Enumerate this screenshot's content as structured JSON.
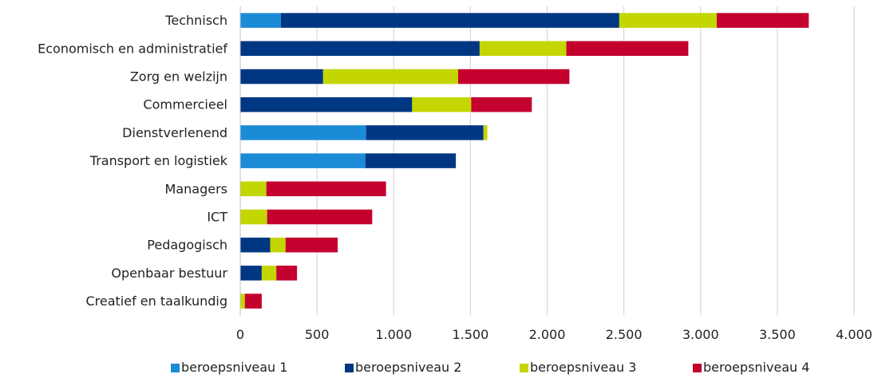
{
  "chart_data": {
    "type": "bar",
    "orientation": "horizontal",
    "stacked": true,
    "title": "",
    "xlabel": "",
    "ylabel": "",
    "xlim": [
      0,
      4000
    ],
    "x_ticks": [
      0,
      500,
      1000,
      1500,
      2000,
      2500,
      3000,
      3500,
      4000
    ],
    "x_tick_labels": [
      "0",
      "500",
      "1.000",
      "1.500",
      "2.000",
      "2.500",
      "3.000",
      "3.500",
      "4.000"
    ],
    "grid": "vertical",
    "legend_position": "bottom",
    "categories": [
      "Technisch",
      "Economisch en administratief",
      "Zorg en welzijn",
      "Commercieel",
      "Dienstverlenend",
      "Transport en logistiek",
      "Managers",
      "ICT",
      "Pedagogisch",
      "Openbaar bestuur",
      "Creatief en taalkundig"
    ],
    "series": [
      {
        "name": "beroepsniveau 1",
        "color": "#1B8BD8",
        "values": [
          265,
          0,
          0,
          0,
          820,
          815,
          0,
          0,
          0,
          0,
          0
        ]
      },
      {
        "name": "beroepsniveau 2",
        "color": "#003782",
        "values": [
          2205,
          1560,
          540,
          1120,
          765,
          590,
          0,
          0,
          195,
          140,
          0
        ]
      },
      {
        "name": "beroepsniveau 3",
        "color": "#C4D600",
        "values": [
          635,
          565,
          880,
          385,
          25,
          0,
          170,
          175,
          100,
          95,
          30
        ]
      },
      {
        "name": "beroepsniveau 4",
        "color": "#C4002F",
        "values": [
          600,
          795,
          725,
          395,
          0,
          0,
          780,
          685,
          340,
          135,
          110
        ]
      }
    ]
  }
}
